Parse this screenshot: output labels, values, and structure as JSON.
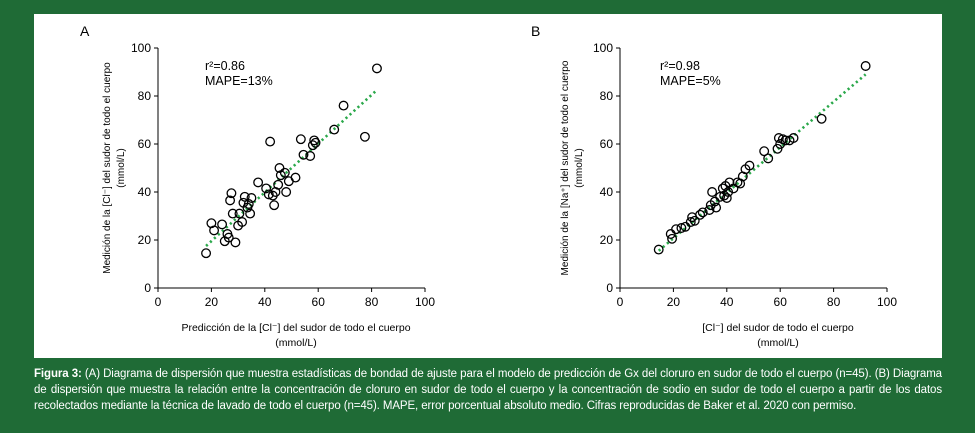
{
  "figure": {
    "background_color": "#1f6b36",
    "panel_color": "#ffffff",
    "dot_line_color": "#2aa84a",
    "caption": {
      "label": "Figura 3:",
      "text": " (A) Diagrama de dispersión que muestra estadísticas de bondad de ajuste para el modelo de predicción de Gx del cloruro en sudor de todo el cuerpo (n=45). (B) Diagrama de dispersión que muestra la relación entre la concentración de cloruro en sudor de todo el cuerpo y la concentración de sodio en sudor de todo el cuerpo a partir de los datos recolectados mediante la técnica de lavado de todo el cuerpo (n=45). MAPE, error porcentual absoluto medio. Cifras reproducidas de Baker et al. 2020 con permiso."
    }
  },
  "chart_data": [
    {
      "type": "scatter",
      "panel_label": "A",
      "xlabel_line1": "Predicción de la [Cl⁻] del sudor de todo el cuerpo",
      "xlabel_line2": "(mmol/L)",
      "ylabel_line1": "Medición de la [Cl⁻] del sudor de todo el cuerpo",
      "ylabel_line2": "(mmol/L)",
      "xlim": [
        0,
        100
      ],
      "ylim": [
        0,
        100
      ],
      "xticks": [
        0,
        20,
        40,
        60,
        80,
        100
      ],
      "yticks": [
        0,
        20,
        40,
        60,
        80,
        100
      ],
      "annotation_r2": "r²=0.86",
      "annotation_mape": "MAPE=13%",
      "trendline": {
        "style": "dotted",
        "x": [
          18,
          82
        ],
        "y": [
          17.5,
          82.5
        ]
      },
      "points": [
        {
          "x": 18,
          "y": 14.5
        },
        {
          "x": 20,
          "y": 27
        },
        {
          "x": 21,
          "y": 24
        },
        {
          "x": 24,
          "y": 26.5
        },
        {
          "x": 25,
          "y": 19.5
        },
        {
          "x": 26,
          "y": 22.5
        },
        {
          "x": 26.5,
          "y": 21
        },
        {
          "x": 27,
          "y": 36.5
        },
        {
          "x": 27.5,
          "y": 39.5
        },
        {
          "x": 28,
          "y": 31
        },
        {
          "x": 29,
          "y": 19
        },
        {
          "x": 30,
          "y": 26
        },
        {
          "x": 30.5,
          "y": 31
        },
        {
          "x": 31.5,
          "y": 27.5
        },
        {
          "x": 32,
          "y": 35.5
        },
        {
          "x": 32.5,
          "y": 38
        },
        {
          "x": 33.5,
          "y": 33.5
        },
        {
          "x": 34,
          "y": 35
        },
        {
          "x": 34.5,
          "y": 31
        },
        {
          "x": 35,
          "y": 37.5
        },
        {
          "x": 37.5,
          "y": 44
        },
        {
          "x": 40.5,
          "y": 41.5
        },
        {
          "x": 41.5,
          "y": 39
        },
        {
          "x": 42,
          "y": 61
        },
        {
          "x": 43,
          "y": 38.5
        },
        {
          "x": 43.5,
          "y": 34.5
        },
        {
          "x": 44,
          "y": 40
        },
        {
          "x": 45,
          "y": 43
        },
        {
          "x": 45.5,
          "y": 50
        },
        {
          "x": 46,
          "y": 47
        },
        {
          "x": 47.5,
          "y": 48
        },
        {
          "x": 48,
          "y": 40
        },
        {
          "x": 49,
          "y": 44.5
        },
        {
          "x": 51.5,
          "y": 46
        },
        {
          "x": 53.5,
          "y": 62
        },
        {
          "x": 54.5,
          "y": 55.5
        },
        {
          "x": 57,
          "y": 55
        },
        {
          "x": 58,
          "y": 59.5
        },
        {
          "x": 58.5,
          "y": 61.5
        },
        {
          "x": 59,
          "y": 60.5
        },
        {
          "x": 66,
          "y": 66
        },
        {
          "x": 69.5,
          "y": 76
        },
        {
          "x": 77.5,
          "y": 63
        },
        {
          "x": 82,
          "y": 91.5
        }
      ]
    },
    {
      "type": "scatter",
      "panel_label": "B",
      "xlabel_line1": "[Cl⁻] del sudor de todo el cuerpo",
      "xlabel_line2": "(mmol/L)",
      "ylabel_line1": "Medición de la [Na⁺] del sudor de todo el cuerpo",
      "ylabel_line2": "(mmol/L)",
      "xlim": [
        0,
        100
      ],
      "ylim": [
        0,
        100
      ],
      "xticks": [
        0,
        20,
        40,
        60,
        80,
        100
      ],
      "yticks": [
        0,
        20,
        40,
        60,
        80,
        100
      ],
      "annotation_r2": "r²=0.98",
      "annotation_mape": "MAPE=5%",
      "trendline": {
        "style": "dotted",
        "x": [
          14.5,
          92
        ],
        "y": [
          15.5,
          89
        ]
      },
      "points": [
        {
          "x": 14.5,
          "y": 16
        },
        {
          "x": 19,
          "y": 22.5
        },
        {
          "x": 19.5,
          "y": 20.5
        },
        {
          "x": 21,
          "y": 24.5
        },
        {
          "x": 23,
          "y": 25
        },
        {
          "x": 24.5,
          "y": 25.5
        },
        {
          "x": 26.5,
          "y": 27.5
        },
        {
          "x": 27,
          "y": 29.5
        },
        {
          "x": 28,
          "y": 28
        },
        {
          "x": 30,
          "y": 30.5
        },
        {
          "x": 31,
          "y": 31.5
        },
        {
          "x": 33.5,
          "y": 32.5
        },
        {
          "x": 34,
          "y": 34.5
        },
        {
          "x": 34.5,
          "y": 40
        },
        {
          "x": 35.5,
          "y": 36
        },
        {
          "x": 36,
          "y": 33.5
        },
        {
          "x": 37.5,
          "y": 38
        },
        {
          "x": 38.5,
          "y": 41.5
        },
        {
          "x": 39,
          "y": 38.5
        },
        {
          "x": 39.5,
          "y": 42.5
        },
        {
          "x": 40,
          "y": 37.5
        },
        {
          "x": 40.5,
          "y": 40
        },
        {
          "x": 41,
          "y": 44
        },
        {
          "x": 42.5,
          "y": 41.5
        },
        {
          "x": 44,
          "y": 44
        },
        {
          "x": 45,
          "y": 43.5
        },
        {
          "x": 46,
          "y": 46.5
        },
        {
          "x": 47,
          "y": 49.5
        },
        {
          "x": 48.5,
          "y": 51
        },
        {
          "x": 54,
          "y": 57
        },
        {
          "x": 55.5,
          "y": 54
        },
        {
          "x": 59,
          "y": 58
        },
        {
          "x": 59.5,
          "y": 62.5
        },
        {
          "x": 60,
          "y": 60
        },
        {
          "x": 61,
          "y": 62
        },
        {
          "x": 62,
          "y": 61.5
        },
        {
          "x": 63.5,
          "y": 61.5
        },
        {
          "x": 65,
          "y": 62.5
        },
        {
          "x": 75.5,
          "y": 70.5
        },
        {
          "x": 92,
          "y": 92.5
        }
      ]
    }
  ]
}
